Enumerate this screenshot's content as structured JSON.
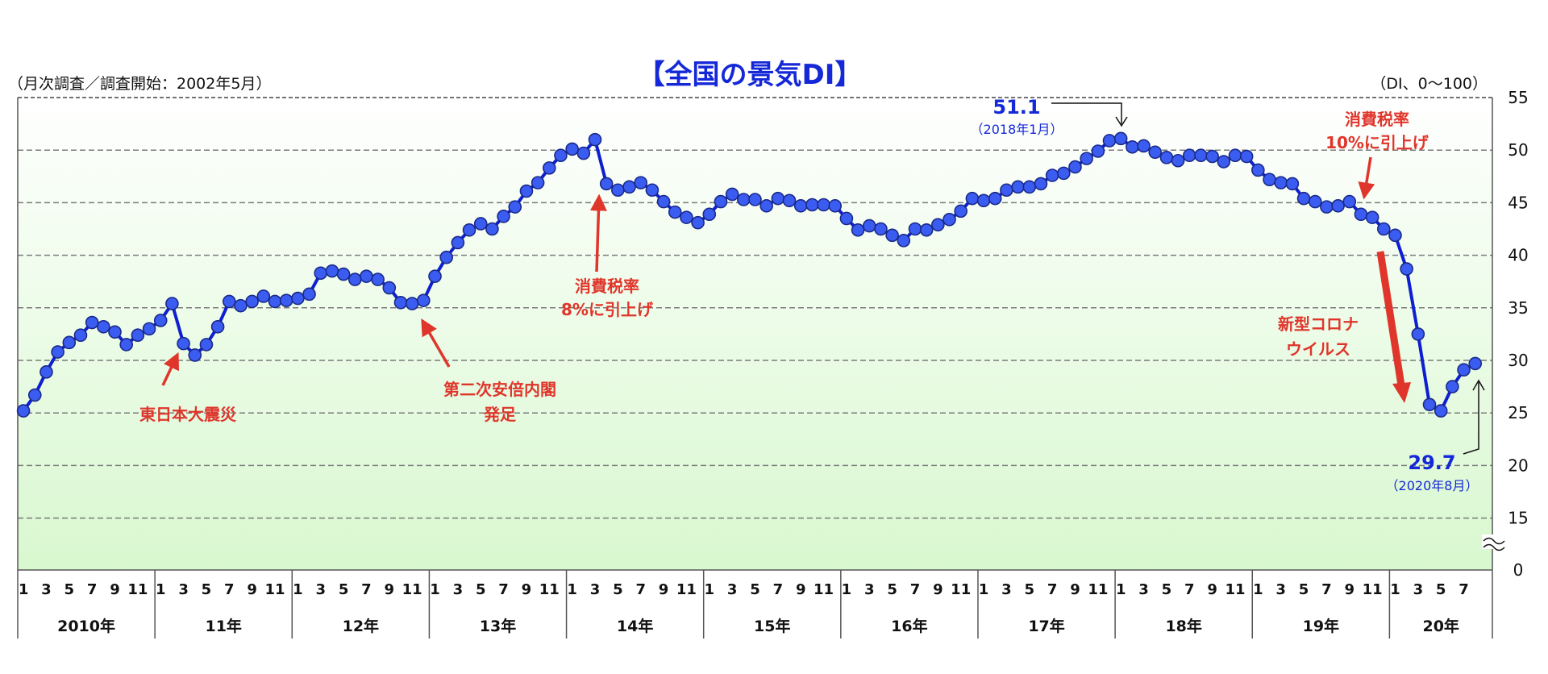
{
  "chart_data": {
    "type": "line",
    "title": "【全国の景気DI】",
    "subtitle_left": "（月次調査／調査開始：2002年5月）",
    "unit_label": "（DI、0～100）",
    "ylim": [
      0,
      55
    ],
    "y_axis_break": true,
    "y_ticks": [
      "55",
      "50",
      "45",
      "40",
      "35",
      "30",
      "25",
      "20",
      "15",
      "0"
    ],
    "grid": true,
    "legend": "none",
    "colors": {
      "line": "#0d1fd0",
      "marker": "#3b5cf0",
      "annotation": "#e0352b",
      "label": "#1428d8",
      "plot_bg_bottom": "#d8f8cf"
    },
    "month_ticks": [
      "1",
      "3",
      "5",
      "7",
      "9",
      "11"
    ],
    "years": [
      {
        "label": "2010年",
        "values": [
          25.2,
          26.7,
          28.9,
          30.8,
          31.7,
          32.4,
          33.6,
          33.2,
          32.7,
          31.5,
          32.4,
          33.0
        ]
      },
      {
        "label": "11年",
        "values": [
          33.8,
          35.4,
          31.6,
          30.5,
          31.5,
          33.2,
          35.6,
          35.2,
          35.6,
          36.1,
          35.6,
          35.7
        ]
      },
      {
        "label": "12年",
        "values": [
          35.9,
          36.3,
          38.3,
          38.5,
          38.2,
          37.7,
          38.0,
          37.7,
          36.9,
          35.5,
          35.4,
          35.7
        ]
      },
      {
        "label": "13年",
        "values": [
          38.0,
          39.8,
          41.2,
          42.4,
          43.0,
          42.5,
          43.7,
          44.6,
          46.1,
          46.9,
          48.3,
          49.5
        ]
      },
      {
        "label": "14年",
        "values": [
          50.1,
          49.7,
          51.0,
          46.8,
          46.2,
          46.5,
          46.9,
          46.2,
          45.1,
          44.1,
          43.6,
          43.1
        ]
      },
      {
        "label": "15年",
        "values": [
          43.9,
          45.1,
          45.8,
          45.3,
          45.3,
          44.7,
          45.4,
          45.2,
          44.7,
          44.8,
          44.8,
          44.7
        ]
      },
      {
        "label": "16年",
        "values": [
          43.5,
          42.4,
          42.8,
          42.5,
          41.9,
          41.4,
          42.5,
          42.4,
          42.9,
          43.4,
          44.2,
          45.4
        ]
      },
      {
        "label": "17年",
        "values": [
          45.2,
          45.4,
          46.2,
          46.5,
          46.5,
          46.8,
          47.6,
          47.8,
          48.4,
          49.2,
          49.9,
          50.9
        ]
      },
      {
        "label": "18年",
        "values": [
          51.1,
          50.3,
          50.4,
          49.8,
          49.3,
          49.0,
          49.5,
          49.5,
          49.4,
          48.9,
          49.5,
          49.4
        ]
      },
      {
        "label": "19年",
        "values": [
          48.1,
          47.2,
          46.9,
          46.8,
          45.4,
          45.1,
          44.6,
          44.7,
          45.1,
          43.9,
          43.6,
          42.5
        ]
      },
      {
        "label": "20年",
        "values": [
          41.9,
          38.7,
          32.5,
          25.8,
          25.2,
          27.5,
          29.1,
          29.7
        ]
      }
    ],
    "annotations": {
      "earthquake": "東日本大震災",
      "abe_line1": "第二次安倍内閣",
      "abe_line2": "発足",
      "tax8_line1": "消費税率",
      "tax8_line2": "8%に引上げ",
      "peak_value": "51.1",
      "peak_date": "（2018年1月）",
      "tax10_line1": "消費税率",
      "tax10_line2": "10%に引上げ",
      "covid_line1": "新型コロナ",
      "covid_line2": "ウイルス",
      "latest_value": "29.7",
      "latest_date": "（2020年8月）"
    }
  }
}
